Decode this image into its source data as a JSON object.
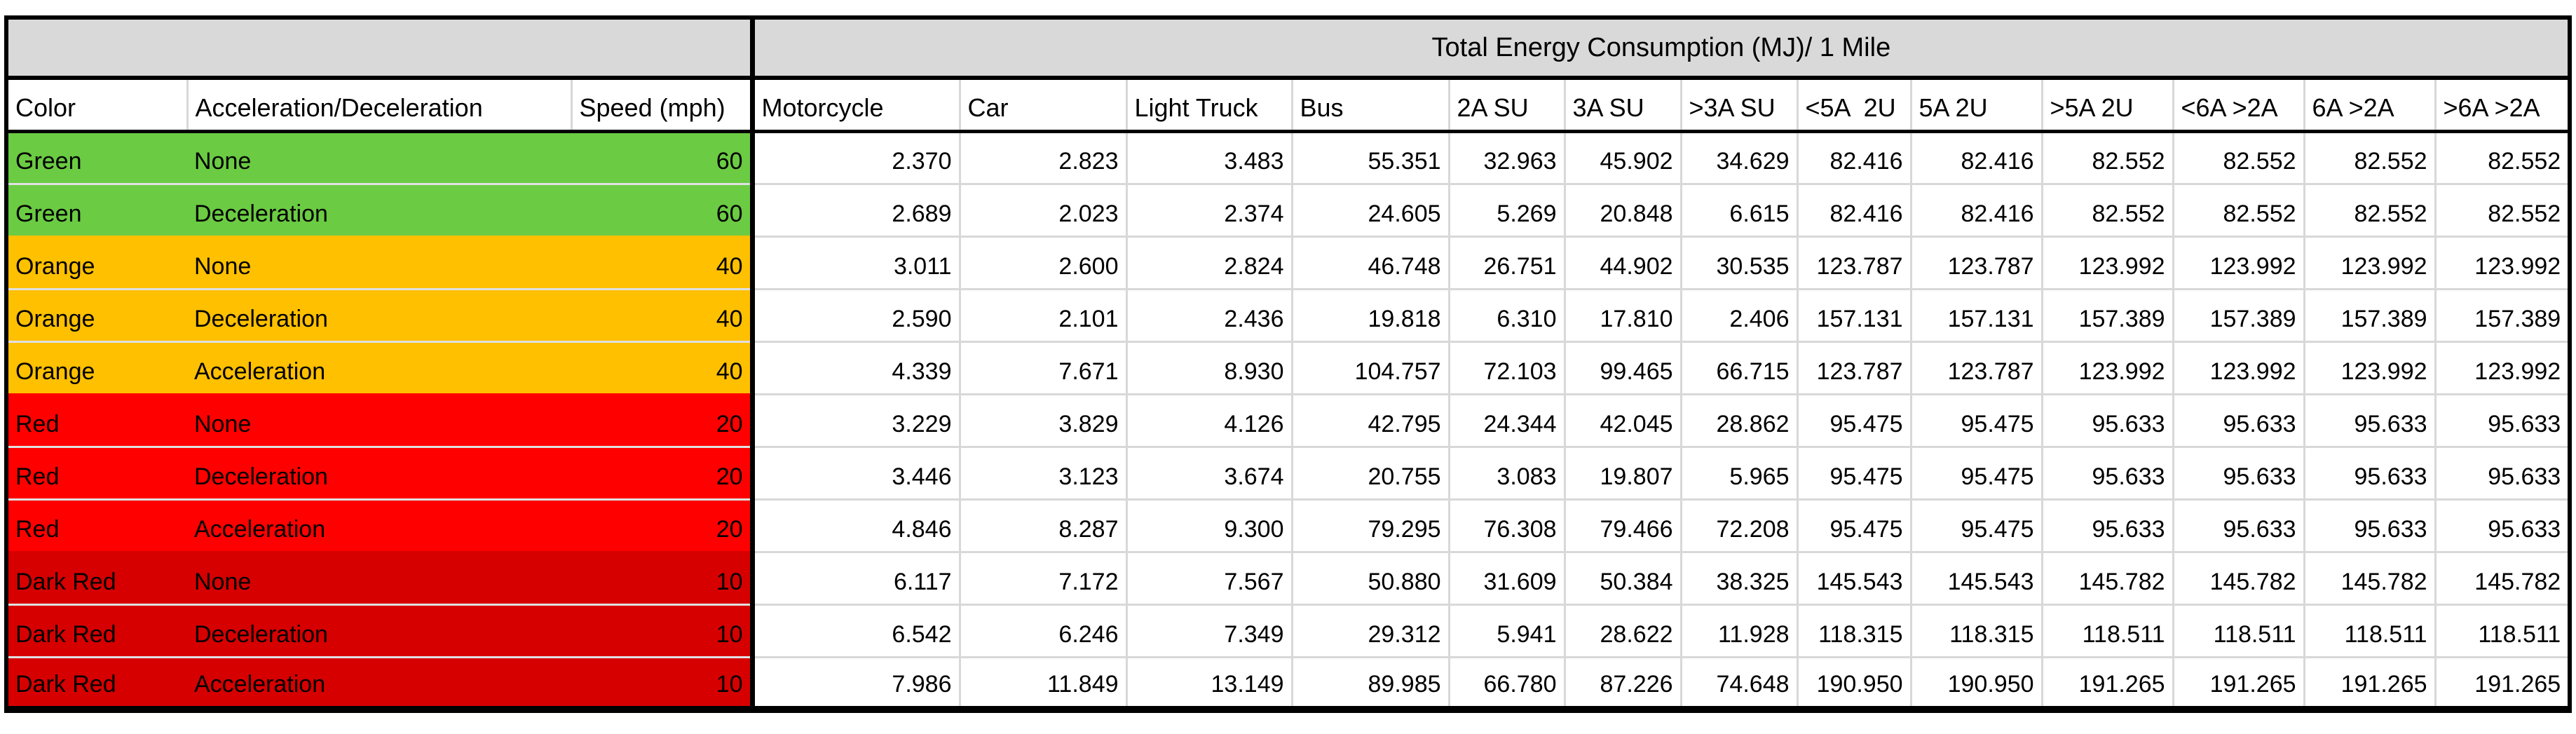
{
  "chart_data": {
    "type": "table",
    "title": "Total Energy Consumption (MJ)/ 1 Mile",
    "row_headers": [
      "Color",
      "Acceleration/Deceleration",
      "Speed (mph)"
    ],
    "columns": [
      "Motorcycle",
      "Car",
      "Light Truck",
      "Bus",
      "2A SU",
      "3A SU",
      ">3A SU",
      "<5A  2U",
      "5A 2U",
      ">5A 2U",
      "<6A >2A",
      "6A >2A",
      ">6A >2A"
    ],
    "rows": [
      {
        "color": "Green",
        "acceleration": "None",
        "speed": "60",
        "fill": "green",
        "values": [
          "2.370",
          "2.823",
          "3.483",
          "55.351",
          "32.963",
          "45.902",
          "34.629",
          "82.416",
          "82.416",
          "82.552",
          "82.552",
          "82.552",
          "82.552"
        ]
      },
      {
        "color": "Green",
        "acceleration": "Deceleration",
        "speed": "60",
        "fill": "green",
        "values": [
          "2.689",
          "2.023",
          "2.374",
          "24.605",
          "5.269",
          "20.848",
          "6.615",
          "82.416",
          "82.416",
          "82.552",
          "82.552",
          "82.552",
          "82.552"
        ]
      },
      {
        "color": "Orange",
        "acceleration": "None",
        "speed": "40",
        "fill": "orange",
        "values": [
          "3.011",
          "2.600",
          "2.824",
          "46.748",
          "26.751",
          "44.902",
          "30.535",
          "123.787",
          "123.787",
          "123.992",
          "123.992",
          "123.992",
          "123.992"
        ]
      },
      {
        "color": "Orange",
        "acceleration": "Deceleration",
        "speed": "40",
        "fill": "orange",
        "values": [
          "2.590",
          "2.101",
          "2.436",
          "19.818",
          "6.310",
          "17.810",
          "2.406",
          "157.131",
          "157.131",
          "157.389",
          "157.389",
          "157.389",
          "157.389"
        ]
      },
      {
        "color": "Orange",
        "acceleration": "Acceleration",
        "speed": "40",
        "fill": "orange",
        "values": [
          "4.339",
          "7.671",
          "8.930",
          "104.757",
          "72.103",
          "99.465",
          "66.715",
          "123.787",
          "123.787",
          "123.992",
          "123.992",
          "123.992",
          "123.992"
        ]
      },
      {
        "color": "Red",
        "acceleration": "None",
        "speed": "20",
        "fill": "red",
        "values": [
          "3.229",
          "3.829",
          "4.126",
          "42.795",
          "24.344",
          "42.045",
          "28.862",
          "95.475",
          "95.475",
          "95.633",
          "95.633",
          "95.633",
          "95.633"
        ]
      },
      {
        "color": "Red",
        "acceleration": "Deceleration",
        "speed": "20",
        "fill": "red",
        "values": [
          "3.446",
          "3.123",
          "3.674",
          "20.755",
          "3.083",
          "19.807",
          "5.965",
          "95.475",
          "95.475",
          "95.633",
          "95.633",
          "95.633",
          "95.633"
        ]
      },
      {
        "color": "Red",
        "acceleration": "Acceleration",
        "speed": "20",
        "fill": "red",
        "values": [
          "4.846",
          "8.287",
          "9.300",
          "79.295",
          "76.308",
          "79.466",
          "72.208",
          "95.475",
          "95.475",
          "95.633",
          "95.633",
          "95.633",
          "95.633"
        ]
      },
      {
        "color": "Dark Red",
        "acceleration": "None",
        "speed": "10",
        "fill": "dark_red",
        "values": [
          "6.117",
          "7.172",
          "7.567",
          "50.880",
          "31.609",
          "50.384",
          "38.325",
          "145.543",
          "145.543",
          "145.782",
          "145.782",
          "145.782",
          "145.782"
        ]
      },
      {
        "color": "Dark Red",
        "acceleration": "Deceleration",
        "speed": "10",
        "fill": "dark_red",
        "values": [
          "6.542",
          "6.246",
          "7.349",
          "29.312",
          "5.941",
          "28.622",
          "11.928",
          "118.315",
          "118.315",
          "118.511",
          "118.511",
          "118.511",
          "118.511"
        ]
      },
      {
        "color": "Dark Red",
        "acceleration": "Acceleration",
        "speed": "10",
        "fill": "dark_red",
        "values": [
          "7.986",
          "11.849",
          "13.149",
          "89.985",
          "66.780",
          "87.226",
          "74.648",
          "190.950",
          "190.950",
          "191.265",
          "191.265",
          "191.265",
          "191.265"
        ]
      }
    ]
  },
  "colors": {
    "green": "#6BCB43",
    "orange": "#FFC000",
    "red": "#FF0000",
    "dark_red": "#D60000",
    "header_fill": "#D9D9D9",
    "gridline": "#D8D8D8",
    "border": "#000000"
  }
}
